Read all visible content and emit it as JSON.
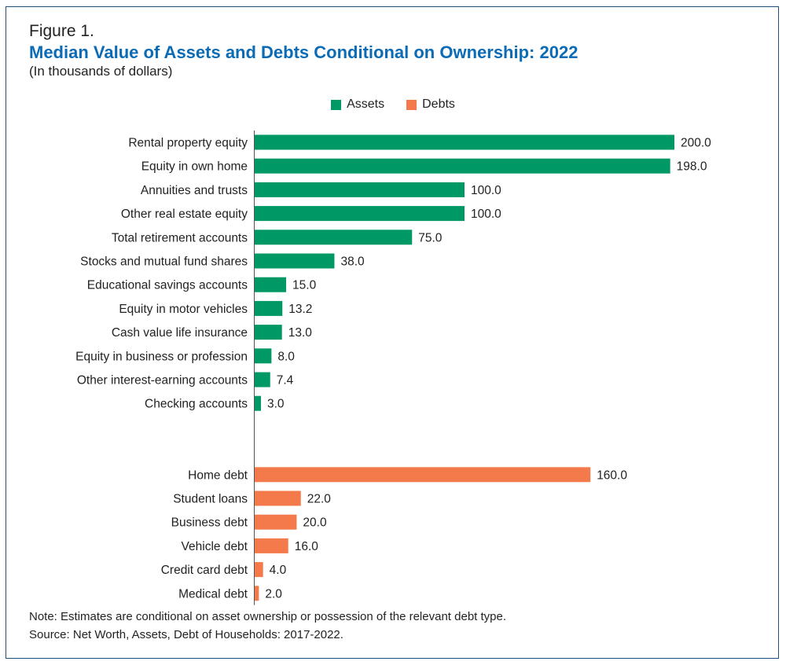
{
  "figure_label": "Figure 1.",
  "title": "Median Value of Assets and Debts Conditional on Ownership: 2022",
  "subtitle": "(In thousands of dollars)",
  "legend": [
    {
      "label": "Assets",
      "color": "#009966"
    },
    {
      "label": "Debts",
      "color": "#f47a4b"
    }
  ],
  "note": "Note: Estimates are conditional on asset ownership or possession of the relevant debt type.",
  "source": "Source: Net Worth, Assets, Debt of Households: 2017-2022.",
  "chart_data": {
    "type": "bar",
    "orientation": "horizontal",
    "xlim": [
      0,
      200
    ],
    "grid": false,
    "legend_position": "top-center",
    "groups": [
      {
        "name": "Assets",
        "color": "#009966",
        "categories": [
          "Rental property equity",
          "Equity in own home",
          "Annuities and trusts",
          "Other real estate equity",
          "Total retirement accounts",
          "Stocks and mutual fund shares",
          "Educational savings accounts",
          "Equity in motor vehicles",
          "Cash value life insurance",
          "Equity in business or profession",
          "Other interest-earning accounts",
          "Checking accounts"
        ],
        "values": [
          200.0,
          198.0,
          100.0,
          100.0,
          75.0,
          38.0,
          15.0,
          13.2,
          13.0,
          8.0,
          7.4,
          3.0
        ],
        "value_labels": [
          "200.0",
          "198.0",
          "100.0",
          "100.0",
          "75.0",
          "38.0",
          "15.0",
          "13.2",
          "13.0",
          "8.0",
          "7.4",
          "3.0"
        ]
      },
      {
        "name": "Debts",
        "color": "#f47a4b",
        "categories": [
          "Home debt",
          "Student loans",
          "Business debt",
          "Vehicle debt",
          "Credit card debt",
          "Medical debt"
        ],
        "values": [
          160.0,
          22.0,
          20.0,
          16.0,
          4.0,
          2.0
        ],
        "value_labels": [
          "160.0",
          "22.0",
          "20.0",
          "16.0",
          "4.0",
          "2.0"
        ]
      }
    ]
  }
}
